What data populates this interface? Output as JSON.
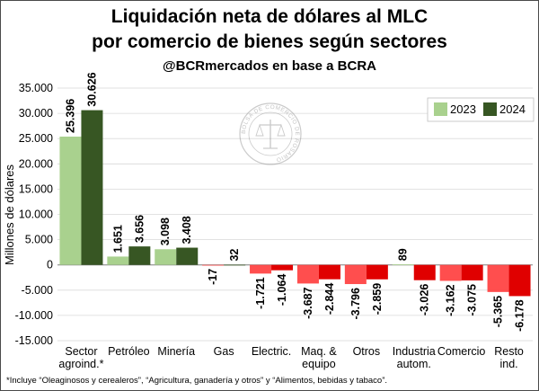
{
  "header": {
    "title_line1": "Liquidación neta de dólares al MLC",
    "title_line2": "por comercio de bienes según sectores",
    "subtitle": "@BCRmercados en base a BCRA"
  },
  "watermark": {
    "text": "BOLSA DE COMERCIO DE ROSARIO"
  },
  "footnote": "*Incluye “Oleaginosos y cerealeros”, “Agricultura, ganadería y otros” y “Alimentos, bebidas y tabaco”.",
  "colors": {
    "series_2023_positive": "#a9d18e",
    "series_2024_positive": "#375623",
    "negative": "#e00000",
    "negative_light": "#ff3b3b"
  },
  "chart_data": {
    "type": "bar",
    "title": "Liquidación neta de dólares al MLC por comercio de bienes según sectores",
    "subtitle": "@BCRmercados en base a BCRA",
    "xlabel": "",
    "ylabel": "Millones de dólares",
    "ylim": [
      -15000,
      35000
    ],
    "yticks": [
      -15000,
      -10000,
      -5000,
      0,
      5000,
      10000,
      15000,
      20000,
      25000,
      30000,
      35000
    ],
    "ytick_labels": [
      "-15.000",
      "-10.000",
      "-5.000",
      "0",
      "5.000",
      "10.000",
      "15.000",
      "20.000",
      "25.000",
      "30.000",
      "35.000"
    ],
    "grid": true,
    "legend_position": "top-right",
    "categories": [
      [
        "Sector",
        "agroind.*"
      ],
      [
        "Petróleo"
      ],
      [
        "Minería"
      ],
      [
        "Gas"
      ],
      [
        "Electric."
      ],
      [
        "Maq. &",
        "equipo"
      ],
      [
        "Otros"
      ],
      [
        "Industria",
        "autom."
      ],
      [
        "Comercio"
      ],
      [
        "Resto",
        "ind."
      ]
    ],
    "series": [
      {
        "name": "2023",
        "values": [
          25396,
          1651,
          3098,
          -17,
          -1721,
          -3687,
          -3796,
          89,
          -3162,
          -5365
        ],
        "labels": [
          "25.396",
          "1.651",
          "3.098",
          "-17",
          "-1.721",
          "-3.687",
          "-3.796",
          "89",
          "-3.162",
          "-5.365"
        ]
      },
      {
        "name": "2024",
        "values": [
          30626,
          3656,
          3408,
          32,
          -1064,
          -2844,
          -2859,
          -3026,
          -3075,
          -6178
        ],
        "labels": [
          "30.626",
          "3.656",
          "3.408",
          "32",
          "-1.064",
          "-2.844",
          "-2.859",
          "-3.026",
          "-3.075",
          "-6.178"
        ]
      }
    ]
  }
}
